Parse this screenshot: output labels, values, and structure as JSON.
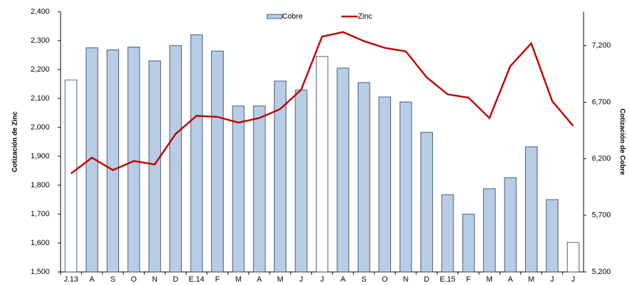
{
  "chart_data": {
    "type": "bar-line",
    "y_label": "Cotización de Zinc",
    "y2_label": "Cotización de Cobre",
    "categories": [
      "J.13",
      "A",
      "S",
      "O",
      "N",
      "D",
      "E.14",
      "F",
      "M",
      "A",
      "M",
      "J",
      "J",
      "A",
      "S",
      "O",
      "N",
      "D",
      "E.15",
      "F",
      "M",
      "A",
      "M",
      "J",
      "J"
    ],
    "series": [
      {
        "name": "Cobre",
        "type": "bar",
        "color": "#b8cce4",
        "colors": [
          "#ffffff",
          "#b8cce4",
          "#b8cce4",
          "#b8cce4",
          "#b8cce4",
          "#b8cce4",
          "#b8cce4",
          "#b8cce4",
          "#b8cce4",
          "#b8cce4",
          "#b8cce4",
          "#b8cce4",
          "#ffffff",
          "#b8cce4",
          "#b8cce4",
          "#b8cce4",
          "#b8cce4",
          "#b8cce4",
          "#b8cce4",
          "#b8cce4",
          "#b8cce4",
          "#b8cce4",
          "#b8cce4",
          "#b8cce4",
          "#ffffff"
        ],
        "values": [
          2164,
          2275,
          2268,
          2278,
          2230,
          2283,
          2320,
          2264,
          2074,
          2074,
          2160,
          2129,
          2245,
          2205,
          2155,
          2105,
          2088,
          1983,
          1767,
          1700,
          1788,
          1826,
          1933,
          1750,
          1602
        ]
      },
      {
        "name": "Zinc",
        "type": "line",
        "color": "#c00000",
        "axis": "y2",
        "values": [
          6070,
          6210,
          6100,
          6180,
          6150,
          6420,
          6580,
          6570,
          6520,
          6560,
          6640,
          6810,
          7280,
          7320,
          7240,
          7180,
          7150,
          6920,
          6770,
          6740,
          6560,
          7020,
          7220,
          6710,
          6490
        ]
      }
    ],
    "ylim": [
      1500,
      2400
    ],
    "yticks": [
      {
        "value": 1500,
        "label": "1,500"
      },
      {
        "value": 1600,
        "label": "1,600"
      },
      {
        "value": 1700,
        "label": "1,700"
      },
      {
        "value": 1800,
        "label": "1,800"
      },
      {
        "value": 1900,
        "label": "1,900"
      },
      {
        "value": 2000,
        "label": "2,000"
      },
      {
        "value": 2100,
        "label": "2,100"
      },
      {
        "value": 2200,
        "label": "2,200"
      },
      {
        "value": 2300,
        "label": "2,300"
      },
      {
        "value": 2400,
        "label": "2,400"
      }
    ],
    "y2lim": [
      5200,
      7500
    ],
    "y2ticks": [
      {
        "value": 5200,
        "label": "5,200"
      },
      {
        "value": 5700,
        "label": "5,700"
      },
      {
        "value": 6200,
        "label": "6,200"
      },
      {
        "value": 6700,
        "label": "6,700"
      },
      {
        "value": 7200,
        "label": "7,200"
      }
    ]
  }
}
